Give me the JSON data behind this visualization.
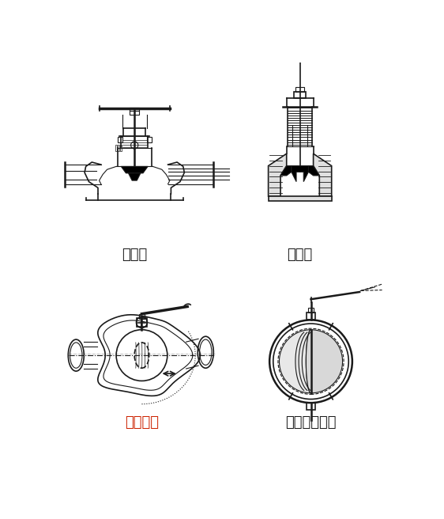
{
  "bg_color": "#ffffff",
  "label_tl": "玉形弁",
  "label_tr": "仕切弁",
  "label_bl": "ボール弁",
  "label_br": "バタフライ弁",
  "label_tl_color": "#1a1a1a",
  "label_tr_color": "#1a1a1a",
  "label_bl_color": "#cc2200",
  "label_br_color": "#1a1a1a",
  "figsize": [
    5.62,
    6.56
  ],
  "dpi": 100
}
